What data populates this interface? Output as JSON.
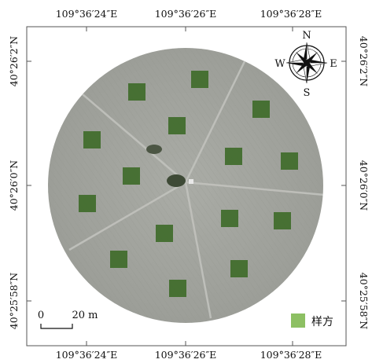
{
  "top_axis": [
    "109°36′24″E",
    "109°36′26″E",
    "109°36′28″E"
  ],
  "bottom_axis": [
    "109°36′24″E",
    "109°36′26″E",
    "109°36′28″E"
  ],
  "left_axis": [
    "40°26′2″N",
    "40°26′0″N",
    "40°25′58″N"
  ],
  "right_axis": [
    "40°26′2″N",
    "40°26′0″N",
    "40°25′58″N"
  ],
  "compass": {
    "north": "N",
    "south": "S",
    "east": "E",
    "west": "W"
  },
  "scale_bar": {
    "start": "0",
    "end": "20 m"
  },
  "legend": {
    "label": "样方",
    "color": "#8dc063"
  },
  "colors": {
    "field": "#a7a9a3",
    "quadrat": "#3f6b2a",
    "frame": "#555555"
  },
  "quadrat_count": 16
}
